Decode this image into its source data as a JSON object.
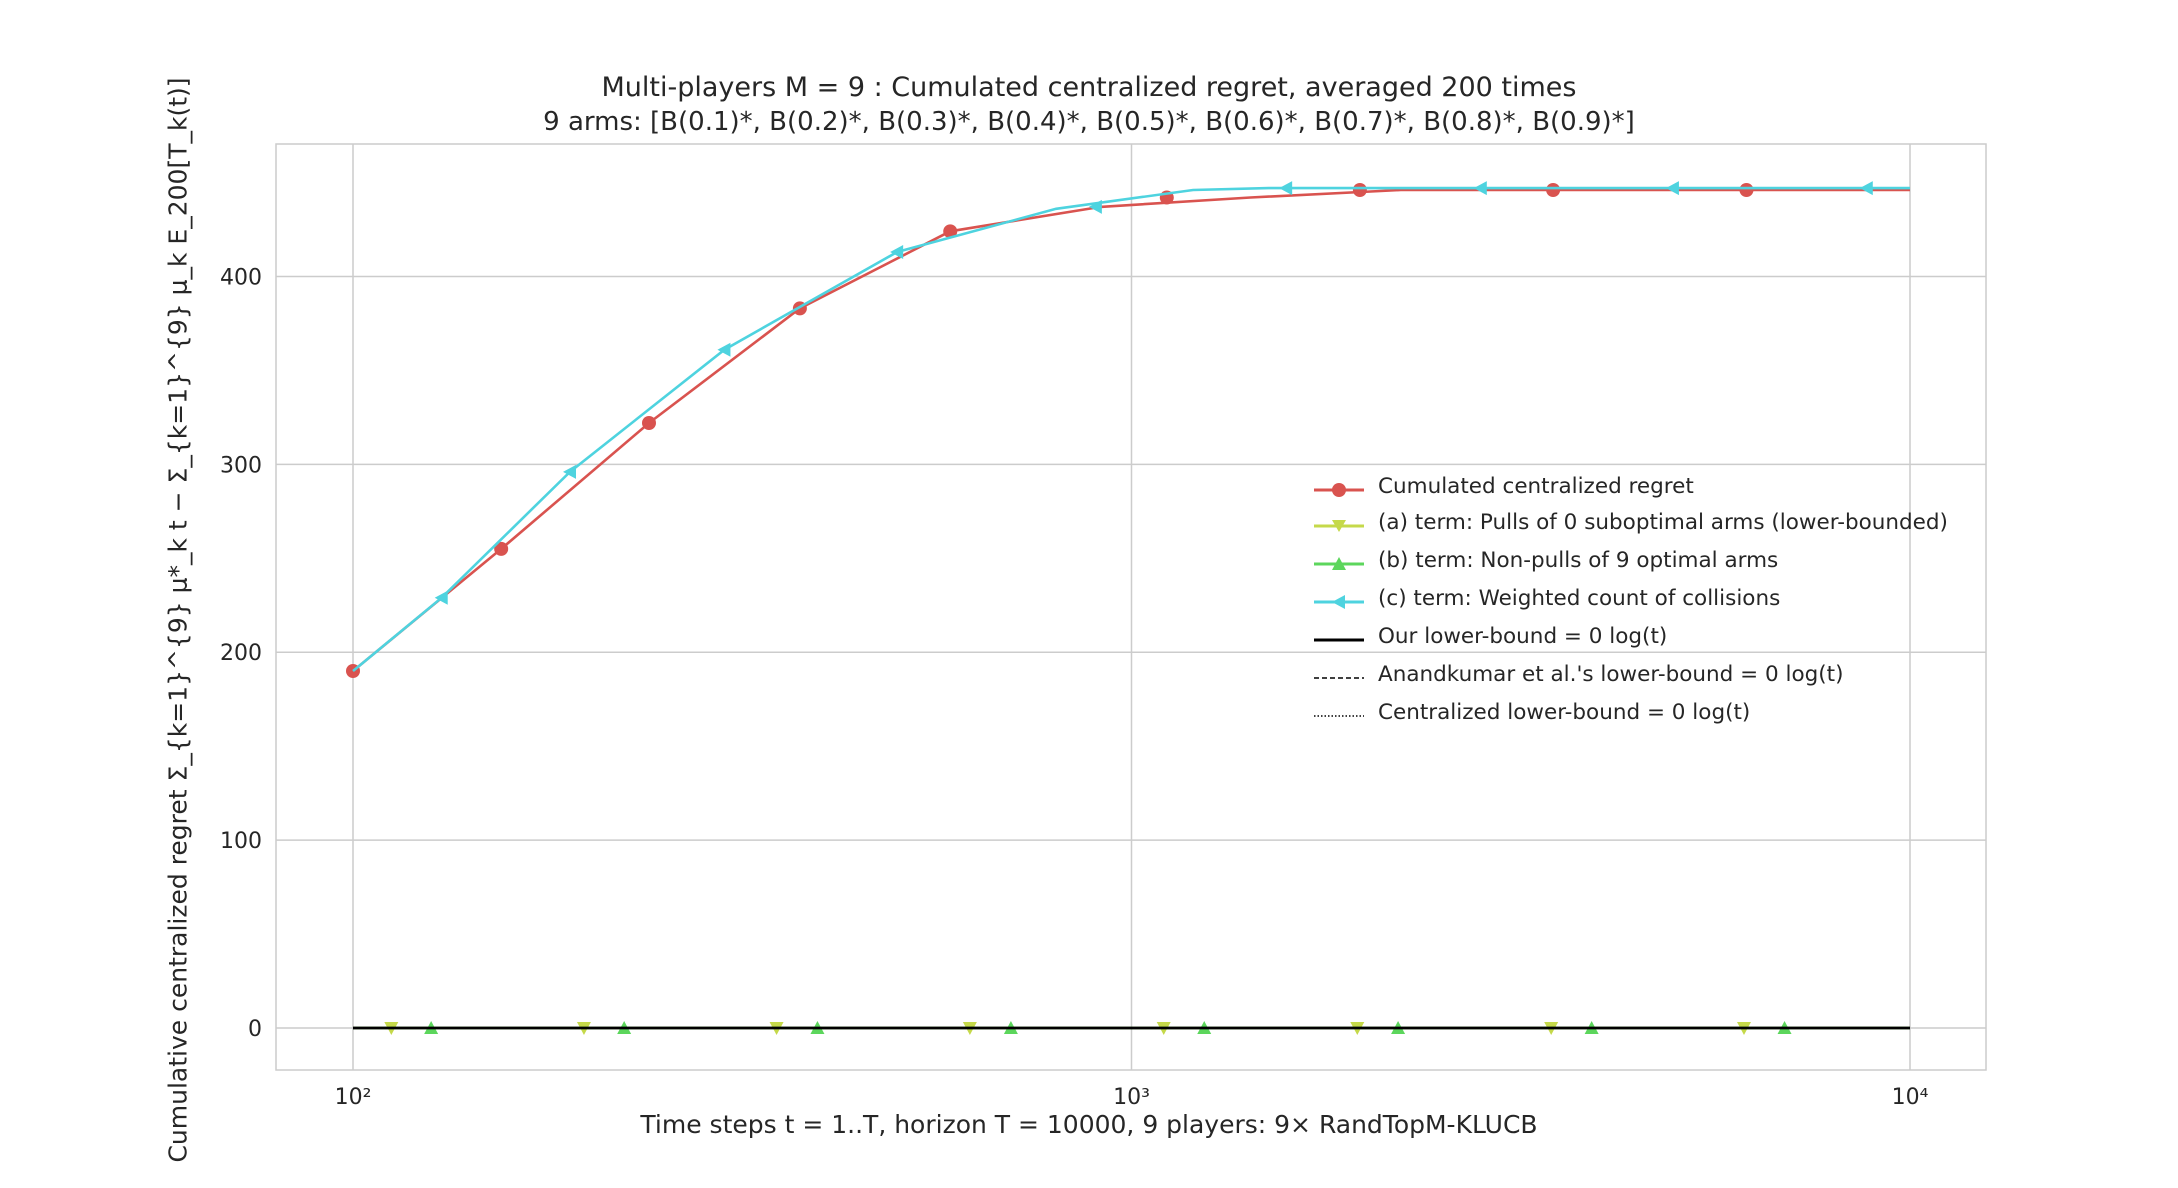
{
  "title": "Multi-players M = 9 : Cumulated centralized regret, averaged 200 times",
  "subtitle": "9 arms: [B(0.1)*, B(0.2)*, B(0.3)*, B(0.4)*, B(0.5)*, B(0.6)*, B(0.7)*, B(0.8)*, B(0.9)*]",
  "xlabel": "Time steps t = 1..T, horizon T = 10000, 9 players: 9× RandTopM-KLUCB",
  "ylabel": "Cumulative centralized regret Σ_{k=1}^{9} μ*_k t − Σ_{k=1}^{9} μ_k E_200[T_k(t)]",
  "chart_data": {
    "type": "line",
    "x_scale": "log",
    "xlim": [
      100,
      10000
    ],
    "ylim": [
      0,
      450
    ],
    "x_ticks": [
      100,
      1000,
      10000
    ],
    "x_tick_labels": [
      "10²",
      "10³",
      "10⁴"
    ],
    "y_ticks": [
      0,
      100,
      200,
      300,
      400
    ],
    "y_tick_labels": [
      "0",
      "100",
      "200",
      "300",
      "400"
    ],
    "grid": true,
    "legend_position": "right",
    "series": [
      {
        "name": "Cumulated centralized regret",
        "color": "#d9534f",
        "marker": "circle",
        "style": "solid",
        "x": [
          100,
          155,
          240,
          375,
          585,
          912,
          1422,
          2217,
          3459,
          5393,
          8410,
          10000
        ],
        "y": [
          190,
          255,
          322,
          383,
          424,
          437,
          442,
          446,
          446,
          446,
          446,
          446
        ],
        "marker_x": [
          100,
          155,
          240,
          375,
          585,
          1110,
          1965,
          3480,
          6165
        ],
        "marker_y": [
          190,
          255,
          322,
          383,
          424,
          442,
          446,
          446,
          446
        ]
      },
      {
        "name": "(a) term: Pulls of 0 suboptimal arms (lower-bounded)",
        "color": "#c5d94a",
        "marker": "triangle-down",
        "style": "solid",
        "x": [
          100,
          10000
        ],
        "y": [
          0,
          0
        ],
        "marker_x": [
          112,
          198,
          350,
          620,
          1100,
          1950,
          3460,
          6120
        ],
        "marker_y": [
          0,
          0,
          0,
          0,
          0,
          0,
          0,
          0
        ]
      },
      {
        "name": "(b) term: Non-pulls of 9 optimal arms",
        "color": "#5cd65c",
        "marker": "triangle-up",
        "style": "solid",
        "x": [
          100,
          10000
        ],
        "y": [
          0,
          0
        ],
        "marker_x": [
          126,
          223,
          395,
          700,
          1240,
          2200,
          3900,
          6900
        ],
        "marker_y": [
          0,
          0,
          0,
          0,
          0,
          0,
          0,
          0
        ]
      },
      {
        "name": "(c) term: Weighted count of collisions",
        "color": "#4ed3df",
        "marker": "triangle-left",
        "style": "solid",
        "x": [
          100,
          130,
          190,
          300,
          500,
          800,
          1200,
          1500,
          3000,
          10000
        ],
        "y": [
          190,
          229,
          296,
          361,
          413,
          436,
          446,
          447,
          447,
          447
        ],
        "marker_x": [
          130,
          190,
          300,
          500,
          900,
          1580,
          2810,
          4960,
          8800
        ],
        "marker_y": [
          229,
          296,
          361,
          413,
          437,
          447,
          447,
          447,
          447
        ]
      },
      {
        "name": "Our lower-bound = 0 log(t)",
        "color": "#000000",
        "marker": "none",
        "style": "solid",
        "x": [
          100,
          10000
        ],
        "y": [
          0,
          0
        ]
      },
      {
        "name": "Anandkumar et al.'s lower-bound = 0 log(t)",
        "color": "#000000",
        "marker": "none",
        "style": "dashed",
        "x": [
          100,
          10000
        ],
        "y": [
          0,
          0
        ]
      },
      {
        "name": "Centralized lower-bound = 0 log(t)",
        "color": "#000000",
        "marker": "none",
        "style": "dotted",
        "x": [
          100,
          10000
        ],
        "y": [
          0,
          0
        ]
      }
    ]
  }
}
